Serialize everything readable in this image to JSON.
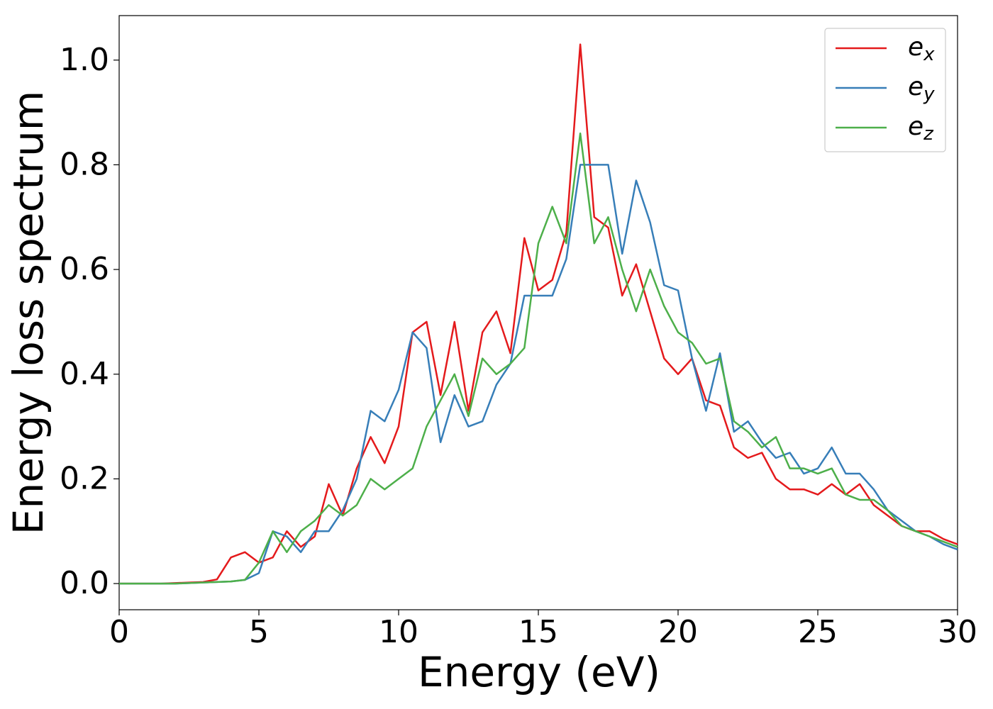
{
  "chart_data": {
    "type": "line",
    "xlabel": "Energy (eV)",
    "ylabel": "Energy loss spectrum",
    "xlim": [
      0,
      30
    ],
    "ylim": [
      -0.05,
      1.085
    ],
    "xticks": [
      0,
      5,
      10,
      15,
      20,
      25,
      30
    ],
    "yticks": [
      {
        "value": 0,
        "label": "0.0"
      },
      0.2,
      0.4,
      0.6,
      0.8,
      {
        "value": 1,
        "label": "1.0"
      }
    ],
    "legend": "upper right",
    "x": [
      0,
      0.5,
      1,
      1.5,
      2,
      2.5,
      3,
      3.5,
      4,
      4.5,
      5,
      5.5,
      6,
      6.5,
      7,
      7.5,
      8,
      8.5,
      9,
      9.5,
      10,
      10.5,
      11,
      11.5,
      12,
      12.5,
      13,
      13.5,
      14,
      14.5,
      15,
      15.5,
      16,
      16.5,
      17,
      17.5,
      18,
      18.5,
      19,
      19.5,
      20,
      20.5,
      21,
      21.5,
      22,
      22.5,
      23,
      23.5,
      24,
      24.5,
      25,
      25.5,
      26,
      26.5,
      27,
      27.5,
      28,
      28.5,
      29,
      29.5,
      30
    ],
    "series": [
      {
        "name": "ex",
        "color": "#e41a1c",
        "values": [
          0,
          0,
          0,
          0,
          0.001,
          0.002,
          0.003,
          0.008,
          0.05,
          0.06,
          0.04,
          0.05,
          0.1,
          0.07,
          0.09,
          0.19,
          0.13,
          0.22,
          0.28,
          0.23,
          0.3,
          0.48,
          0.5,
          0.36,
          0.5,
          0.33,
          0.48,
          0.52,
          0.44,
          0.66,
          0.56,
          0.58,
          0.67,
          1.03,
          0.7,
          0.68,
          0.55,
          0.61,
          0.52,
          0.43,
          0.4,
          0.43,
          0.35,
          0.34,
          0.26,
          0.24,
          0.25,
          0.2,
          0.18,
          0.18,
          0.17,
          0.19,
          0.17,
          0.19,
          0.15,
          0.13,
          0.11,
          0.1,
          0.1,
          0.085,
          0.075
        ]
      },
      {
        "name": "ey",
        "color": "#377eb8",
        "values": [
          0,
          0,
          0,
          0,
          0,
          0.001,
          0.002,
          0.003,
          0.004,
          0.007,
          0.02,
          0.1,
          0.09,
          0.06,
          0.1,
          0.1,
          0.14,
          0.2,
          0.33,
          0.31,
          0.37,
          0.48,
          0.45,
          0.27,
          0.36,
          0.3,
          0.31,
          0.38,
          0.42,
          0.55,
          0.55,
          0.55,
          0.62,
          0.8,
          0.8,
          0.8,
          0.63,
          0.77,
          0.69,
          0.57,
          0.56,
          0.43,
          0.33,
          0.44,
          0.29,
          0.31,
          0.27,
          0.24,
          0.25,
          0.21,
          0.22,
          0.26,
          0.21,
          0.21,
          0.18,
          0.14,
          0.12,
          0.1,
          0.09,
          0.075,
          0.065
        ]
      },
      {
        "name": "ez",
        "color": "#4daf4a",
        "values": [
          0,
          0,
          0,
          0,
          0,
          0.001,
          0.002,
          0.003,
          0.004,
          0.007,
          0.04,
          0.1,
          0.06,
          0.1,
          0.12,
          0.15,
          0.13,
          0.15,
          0.2,
          0.18,
          0.2,
          0.22,
          0.3,
          0.35,
          0.4,
          0.32,
          0.43,
          0.4,
          0.42,
          0.45,
          0.65,
          0.72,
          0.65,
          0.86,
          0.65,
          0.7,
          0.6,
          0.52,
          0.6,
          0.53,
          0.48,
          0.46,
          0.42,
          0.43,
          0.31,
          0.29,
          0.26,
          0.28,
          0.22,
          0.22,
          0.21,
          0.22,
          0.17,
          0.16,
          0.16,
          0.14,
          0.11,
          0.1,
          0.09,
          0.08,
          0.07
        ]
      }
    ]
  }
}
